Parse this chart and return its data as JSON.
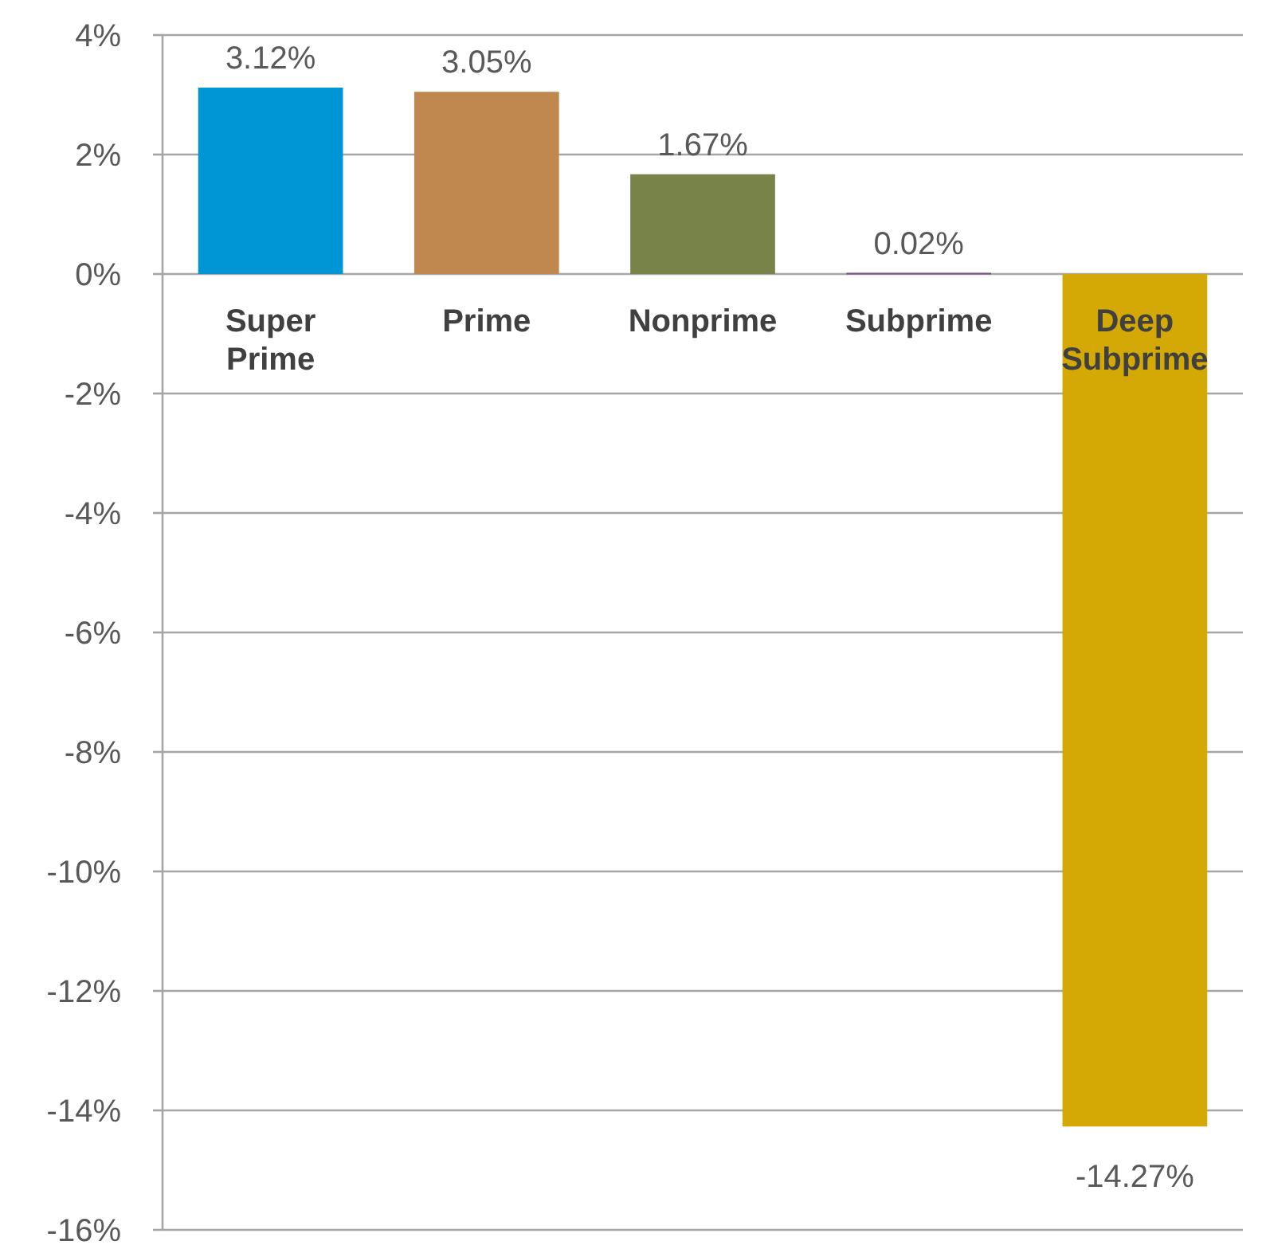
{
  "chart_data": {
    "type": "bar",
    "categories": [
      "Super Prime",
      "Prime",
      "Nonprime",
      "Subprime",
      "Deep Subprime"
    ],
    "values": [
      3.12,
      3.05,
      1.67,
      0.02,
      -14.27
    ],
    "colors": [
      "#0096d6",
      "#c0884f",
      "#78834a",
      "#7b4f8a",
      "#d4a906"
    ],
    "value_labels": [
      "3.12%",
      "3.05%",
      "1.67%",
      "0.02%",
      "-14.27%"
    ],
    "ylim": [
      -16,
      4
    ],
    "yticks": [
      {
        "value": 4,
        "label": "4%"
      },
      {
        "value": 2,
        "label": "2%"
      },
      {
        "value": 0,
        "label": "0%"
      },
      {
        "value": -2,
        "label": "-2%"
      },
      {
        "value": -4,
        "label": "-4%"
      },
      {
        "value": -6,
        "label": "-6%"
      },
      {
        "value": -8,
        "label": "-8%"
      },
      {
        "value": -10,
        "label": "-10%"
      },
      {
        "value": -12,
        "label": "-12%"
      },
      {
        "value": -14,
        "label": "-14%"
      },
      {
        "value": -16,
        "label": "-16%"
      }
    ],
    "grid": "y"
  }
}
